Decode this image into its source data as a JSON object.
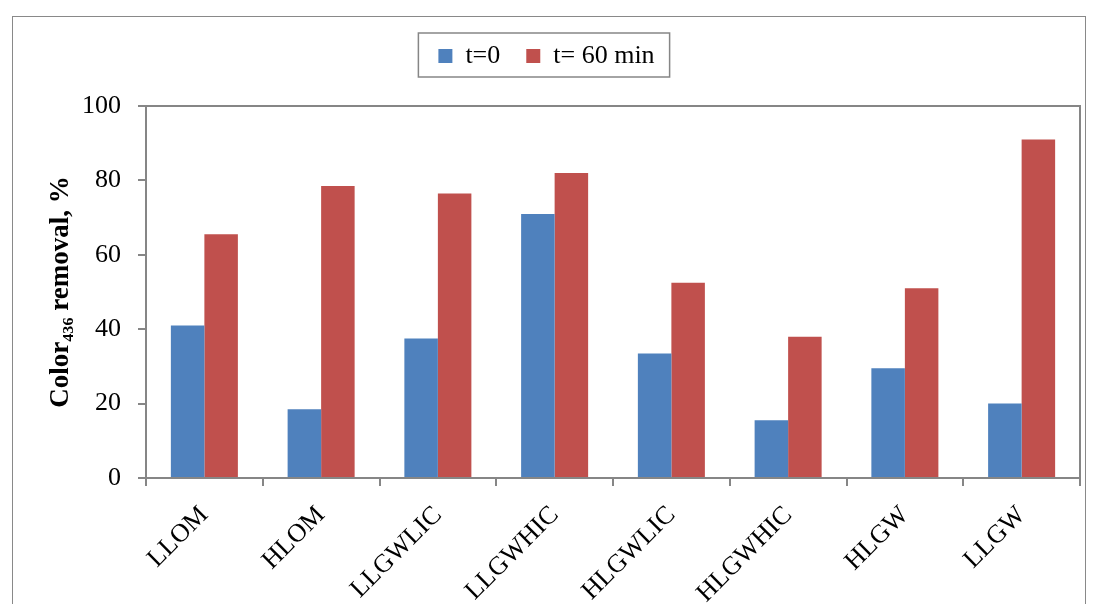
{
  "chart_data": {
    "type": "bar",
    "categories": [
      "LLOM",
      "HLOM",
      "LLGWLIC",
      "LLGWHIC",
      "HLGWLIC",
      "HLGWHIC",
      "HLGW",
      "LLGW"
    ],
    "series": [
      {
        "name": "t=0",
        "color": "#4f81bd",
        "values": [
          41,
          18.5,
          37.5,
          71,
          33.5,
          15.5,
          29.5,
          20
        ]
      },
      {
        "name": "t= 60 min",
        "color": "#c0504d",
        "values": [
          65.5,
          78.5,
          76.5,
          82,
          52.5,
          38,
          51,
          91
        ]
      }
    ],
    "ylabel": "Color₄₃₆ removal, %",
    "ylim": [
      0,
      100
    ],
    "yticks": [
      0,
      20,
      40,
      60,
      80,
      100
    ],
    "grid": false,
    "legend": "top"
  }
}
